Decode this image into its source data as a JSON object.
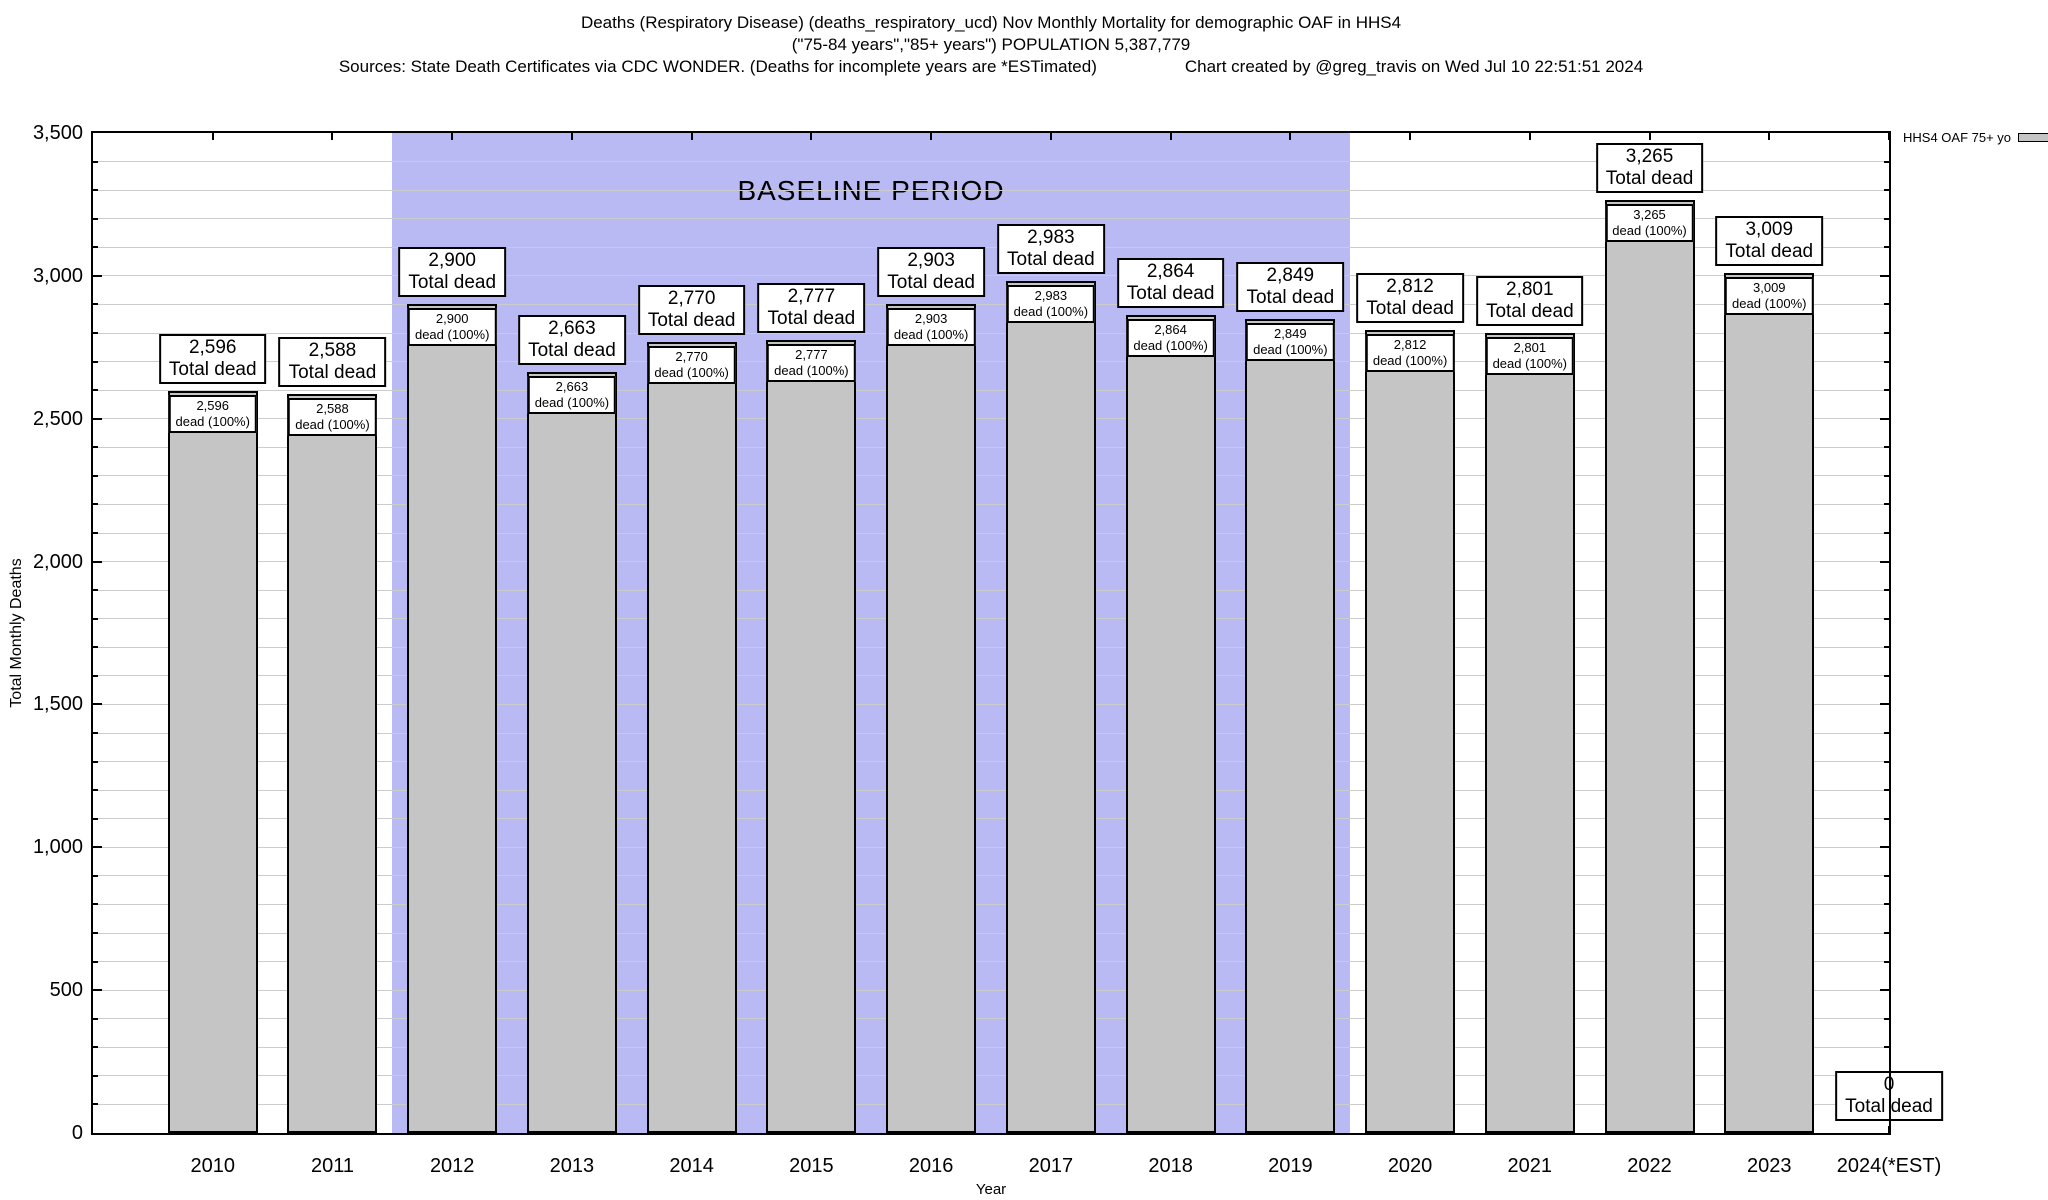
{
  "header": {
    "title_line1": "Deaths (Respiratory Disease) (deaths_respiratory_ucd) Nov Monthly Mortality for demographic OAF in HHS4",
    "title_line2": "(\"75-84 years\",\"85+ years\") POPULATION 5,387,779",
    "sources": "Sources: State Death Certificates via CDC WONDER. (Deaths for incomplete years are *ESTimated)",
    "credit": "Chart created by @greg_travis on Wed Jul 10 22:51:51 2024"
  },
  "legend": {
    "label": "HHS4 OAF 75+ yo"
  },
  "annotations": {
    "baseline_label": "BASELINE PERIOD",
    "baseline_start": 2011.5,
    "baseline_end": 2019.5
  },
  "colors": {
    "bar_fill": "#c5c5c5",
    "baseline_fill": "#b9b9f4",
    "grid": "#cccccc"
  },
  "chart_data": {
    "type": "bar",
    "title": "Deaths (Respiratory Disease) (deaths_respiratory_ucd) Nov Monthly Mortality for demographic OAF in HHS4",
    "xlabel": "Year",
    "ylabel": "Total Monthly Deaths",
    "ylim": [
      0,
      3500
    ],
    "x_range": [
      2009,
      2024
    ],
    "grid": "horizontal, minor every 100, major every 500",
    "legend_position": "outside top right",
    "categories": [
      "2010",
      "2011",
      "2012",
      "2013",
      "2014",
      "2015",
      "2016",
      "2017",
      "2018",
      "2019",
      "2020",
      "2021",
      "2022",
      "2023",
      "2024(*EST)"
    ],
    "x_positions": [
      2010,
      2011,
      2012,
      2013,
      2014,
      2015,
      2016,
      2017,
      2018,
      2019,
      2020,
      2021,
      2022,
      2023,
      2024
    ],
    "values": [
      2596,
      2588,
      2900,
      2663,
      2770,
      2777,
      2903,
      2983,
      2864,
      2849,
      2812,
      2801,
      3265,
      3009,
      0
    ],
    "value_labels": [
      "2,596",
      "2,588",
      "2,900",
      "2,663",
      "2,770",
      "2,777",
      "2,903",
      "2,983",
      "2,864",
      "2,849",
      "2,812",
      "2,801",
      "3,265",
      "3,009",
      "0"
    ],
    "total_dead_label": "Total dead",
    "inner_label_suffix": "dead (100%)",
    "series_name": "HHS4 OAF 75+ yo",
    "ytick_major": 500,
    "ytick_minor": 100,
    "ytick_labels": [
      "0",
      "500",
      "1,000",
      "1,500",
      "2,000",
      "2,500",
      "3,000",
      "3,500"
    ]
  }
}
